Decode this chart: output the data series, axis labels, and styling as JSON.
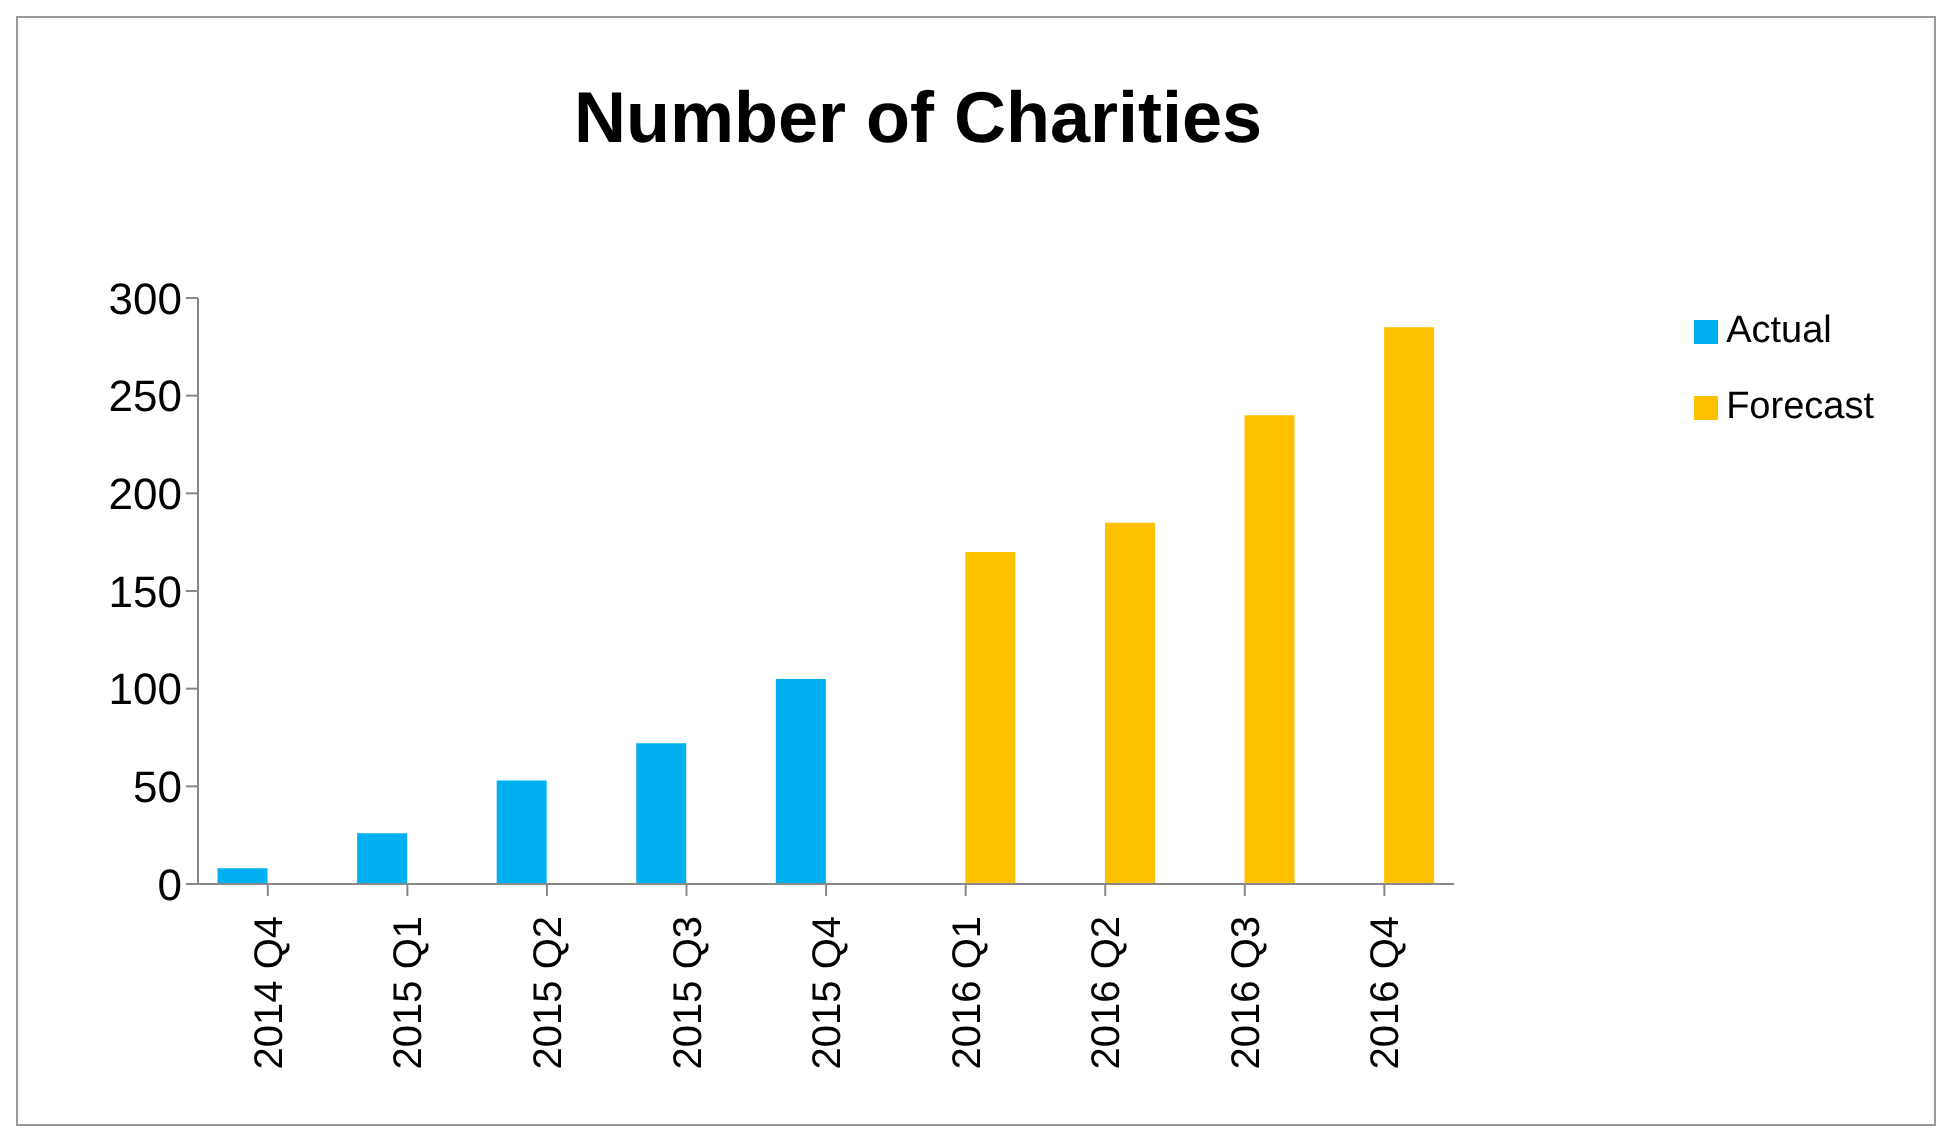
{
  "chart_data": {
    "type": "bar",
    "title": "Number of Charities",
    "categories": [
      "2014 Q4",
      "2015 Q1",
      "2015 Q2",
      "2015 Q3",
      "2015 Q4",
      "2016 Q1",
      "2016 Q2",
      "2016 Q3",
      "2016 Q4"
    ],
    "series": [
      {
        "name": "Actual",
        "color": "#00b0f0",
        "values": [
          8,
          26,
          53,
          72,
          105,
          null,
          null,
          null,
          null
        ]
      },
      {
        "name": "Forecast",
        "color": "#ffc000",
        "values": [
          null,
          null,
          null,
          null,
          null,
          170,
          185,
          240,
          285
        ]
      }
    ],
    "ylim": [
      0,
      300
    ],
    "yticks": [
      0,
      50,
      100,
      150,
      200,
      250,
      300
    ],
    "grid": false,
    "legend": "top right"
  }
}
